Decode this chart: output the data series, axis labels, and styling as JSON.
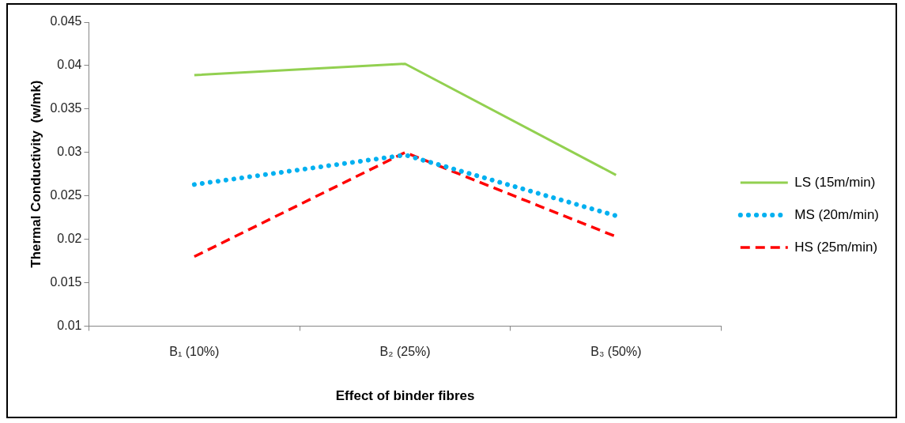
{
  "chart_data": {
    "type": "line",
    "xlabel": "Effect of binder fibres",
    "ylabel": "Thermal Conductivity  (w/mk)",
    "categories": [
      "B₁ (10%)",
      "B₂ (25%)",
      "B₃ (50%)"
    ],
    "series": [
      {
        "name": "LS (15m/min)",
        "color": "#92d050",
        "line_style": "solid",
        "values": [
          0.0389,
          0.0402,
          0.0274
        ]
      },
      {
        "name": "MS (20m/min)",
        "color": "#00b0f0",
        "line_style": "dotted",
        "values": [
          0.0263,
          0.0297,
          0.0227
        ]
      },
      {
        "name": "HS (25m/min)",
        "color": "#ff0000",
        "line_style": "dashed",
        "values": [
          0.018,
          0.03,
          0.0203
        ]
      }
    ],
    "ylim": [
      0.01,
      0.045
    ],
    "yticks": [
      0.01,
      0.015,
      0.02,
      0.025,
      0.03,
      0.035,
      0.04,
      0.045
    ],
    "grid": false,
    "legend": "right",
    "marker": "none"
  }
}
